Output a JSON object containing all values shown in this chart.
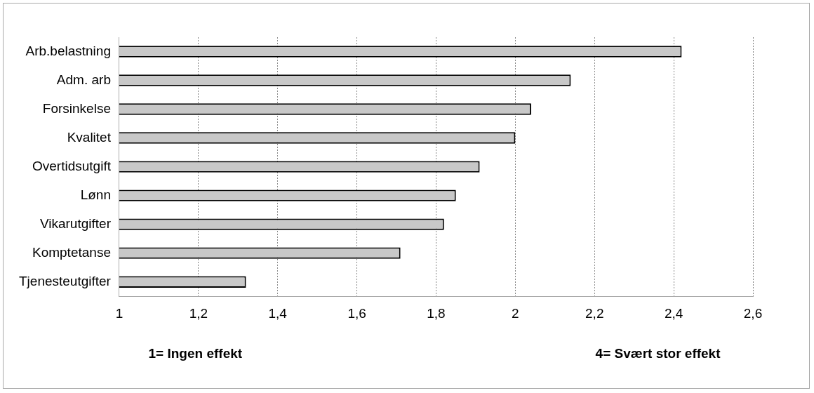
{
  "chart_data": {
    "type": "bar",
    "orientation": "horizontal",
    "categories": [
      "Arb.belastning",
      "Adm. arb",
      "Forsinkelse",
      "Kvalitet",
      "Overtidsutgift",
      "Lønn",
      "Vikarutgifter",
      "Komptetanse",
      "Tjenesteutgifter"
    ],
    "values": [
      2.42,
      2.14,
      2.04,
      2.0,
      1.91,
      1.85,
      1.82,
      1.71,
      1.32
    ],
    "color": "#c8c8c8",
    "xlim": [
      1,
      2.6
    ],
    "xticks": [
      1,
      {
        "value": 1.2,
        "label": "1,2"
      },
      {
        "value": 1.4,
        "label": "1,4"
      },
      {
        "value": 1.6,
        "label": "1,6"
      },
      {
        "value": 1.8,
        "label": "1,8"
      },
      2,
      {
        "value": 2.2,
        "label": "2,2"
      },
      {
        "value": 2.4,
        "label": "2,4"
      },
      {
        "value": 2.6,
        "label": "2,6"
      }
    ],
    "grid": "x",
    "legend": false,
    "annotations": [
      "1= Ingen effekt",
      "4= Svært stor effekt"
    ]
  }
}
